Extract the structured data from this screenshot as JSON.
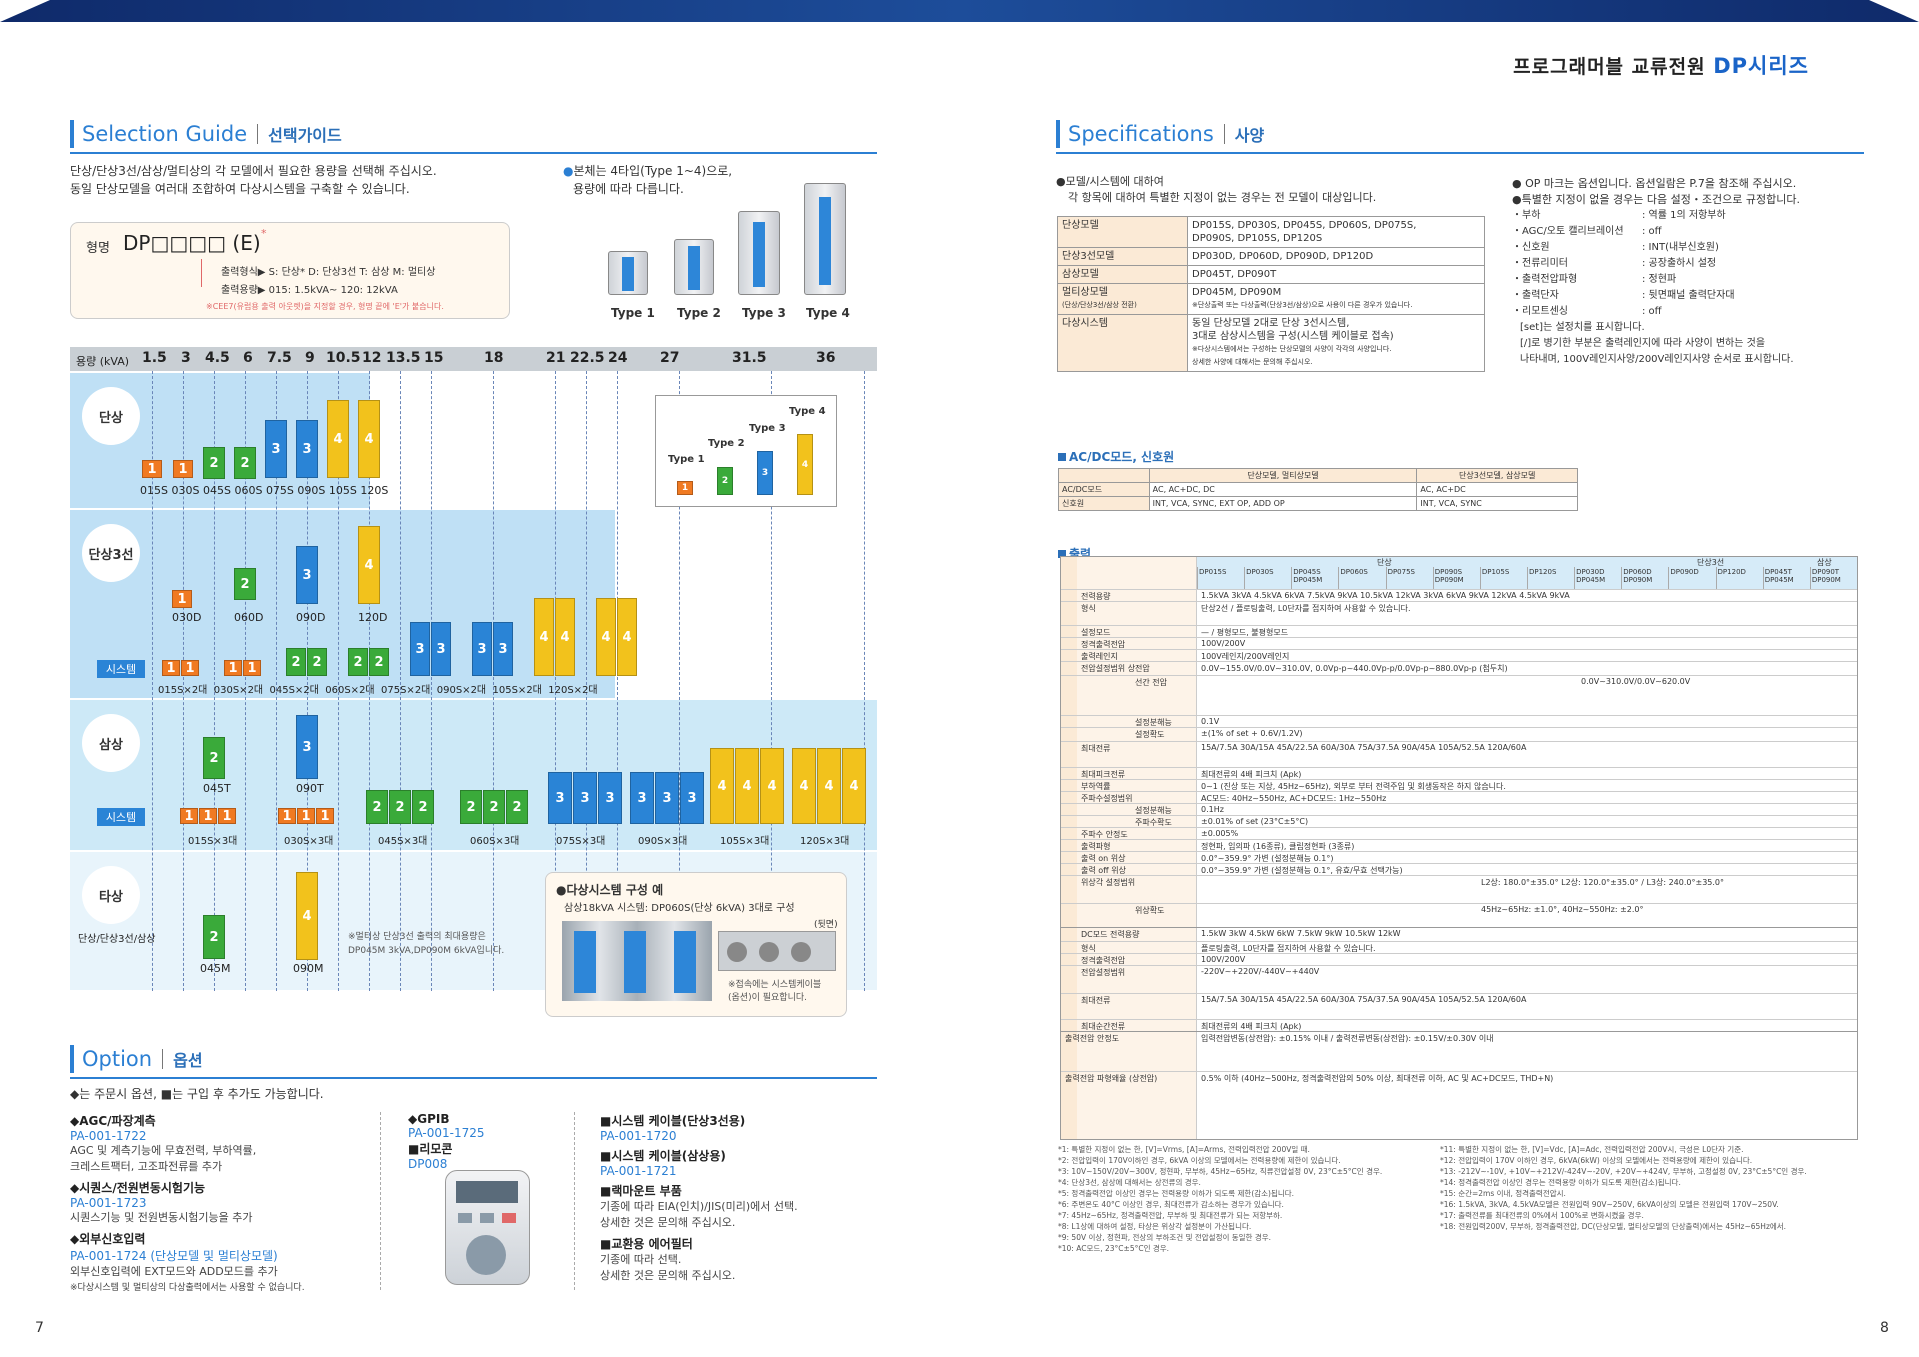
{
  "brand": {
    "title": "프로그래머블 교류전원",
    "series": "DP시리즈"
  },
  "page_numbers": {
    "left": "7",
    "right": "8"
  },
  "guide": {
    "title_en": "Selection Guide",
    "title_ko": "선택가이드",
    "intro1": "단상/단상3선/삼상/멀티상의 각 모델에서 필요한 용량을 선택해 주십시오.",
    "intro2": "동일 단상모델을 여러대 조합하여 다상시스템을 구축할 수 있습니다.",
    "types_intro1": "본체는 4타입(Type 1~4)으로,",
    "types_intro2": "용량에 따라 다릅니다.",
    "model_label": "형명",
    "model_code": "DP□□□□ (E)",
    "model_sup": "*",
    "model_line1": "출력형식▶ S: 단상* D: 단상3선 T: 삼상 M: 멀티상",
    "model_line2": "출력용량▶ 015: 1.5kVA~ 120: 12kVA",
    "model_note": "※CEE7(유럽용 출력 아웃렛)을 지정할 경우, 형명 끝에 'E'가 붙습니다.",
    "types": [
      "Type 1",
      "Type 2",
      "Type 3",
      "Type 4"
    ],
    "cap_label": "용량 (kVA)",
    "caps": [
      "1.5",
      "3",
      "4.5",
      "6",
      "7.5",
      "9",
      "10.5",
      "12",
      "13.5",
      "15",
      "18",
      "21",
      "22.5",
      "24",
      "27",
      "31.5",
      "36"
    ],
    "rows": {
      "single": "단상",
      "threewire": "단상3선",
      "three": "삼상",
      "multi": "타상",
      "multi_sub": "단상/단상3선/삼상"
    },
    "system_tag": "시스템",
    "single_models": [
      "015S",
      "030S",
      "045S",
      "060S",
      "075S",
      "090S",
      "105S",
      "120S"
    ],
    "tw_models": [
      "030D",
      "060D",
      "090D",
      "120D"
    ],
    "tw_sys": [
      "015S×2대",
      "030S×2대",
      "045S×2대",
      "060S×2대",
      "075S×2대",
      "090S×2대",
      "105S×2대",
      "120S×2대"
    ],
    "three_models": [
      "045T",
      "090T"
    ],
    "three_sys": [
      "015S×3대",
      "030S×3대",
      "045S×3대",
      "060S×3대",
      "075S×3대",
      "090S×3대",
      "105S×3대",
      "120S×3대"
    ],
    "multi_models": [
      "045M",
      "090M"
    ],
    "multi_note1": "※멀티상 단상3선 출력의 최대용량은",
    "multi_note2": "DP045M 3kVA,DP090M 6kVA입니다.",
    "example_title": "●다상시스템 구성 예",
    "example_sub": "삼상18kVA 시스템: DP060S(단상 6kVA) 3대로 구성",
    "example_back": "(뒷면)",
    "example_note1": "※접속에는 시스템케이블",
    "example_note2": "(옵션)이 필요합니다.",
    "legend_types": [
      "Type 4",
      "Type 3",
      "Type 2",
      "Type 1"
    ]
  },
  "option": {
    "title_en": "Option",
    "title_ko": "옵션",
    "intro": "◆는 주문시 옵션, ■는 구입 후 추가도 가능합니다.",
    "items": [
      {
        "h": "◆AGC/파장계측",
        "c": "PA-001-1722",
        "d": [
          "AGC 및 계측기능에 무효전력, 부하역률,",
          "크레스트팩터, 고조파전류를 추가"
        ]
      },
      {
        "h": "◆시퀀스/전원변동시험기능",
        "c": "PA-001-1723",
        "d": [
          "시퀀스기능 및 전원변동시험기능을 추가"
        ]
      },
      {
        "h": "◆외부신호입력",
        "c": "PA-001-1724 (단상모델 및 멀티상모델)",
        "d": [
          "외부신호입력에 EXT모드와 ADD모드를 추가",
          "※다상시스템 및 멀티상의 다상출력에서는 사용할 수 없습니다."
        ]
      },
      {
        "h": "◆GPIB",
        "c": "PA-001-1725",
        "d": []
      },
      {
        "h": "■리모콘",
        "c": "DP008",
        "d": []
      },
      {
        "h": "■시스템 케이블(단상3선용)",
        "c": "PA-001-1720",
        "d": []
      },
      {
        "h": "■시스템 케이블(삼상용)",
        "c": "PA-001-1721",
        "d": []
      },
      {
        "h": "■랙마운트 부품",
        "c": "",
        "d": [
          "기종에 따라 EIA(인치)/JIS(미리)에서 선택.",
          "상세한 것은 문의해 주십시오."
        ]
      },
      {
        "h": "■교환용 에어필터",
        "c": "",
        "d": [
          "기종에 따라 선택.",
          "상세한 것은 문의해 주십시오."
        ]
      }
    ]
  },
  "spec": {
    "title_en": "Specifications",
    "title_ko": "사양",
    "note1": "●모델/시스템에 대하여",
    "note2": "각 항목에 대하여 특별한 지정이 없는 경우는 전 모델이 대상입니다.",
    "right1": "● OP 마크는 옵션입니다. 옵션일람은 P.7을 참조해 주십시오.",
    "right2": "●특별한 지정이 없을 경우는 다음 설정・조건으로 규정합니다.",
    "conds": [
      [
        "・부하",
        ": 역률 1의 저항부하"
      ],
      [
        "・AGC/오토 캘리브레이션",
        ": off"
      ],
      [
        "・신호원",
        ": INT(내부신호원)"
      ],
      [
        "・전류리미터",
        ": 공장출하시 설정"
      ],
      [
        "・출력전압파형",
        ": 정현파"
      ],
      [
        "・출력단자",
        ": 뒷면패널 출력단자대"
      ],
      [
        "・리모트센싱",
        ": off"
      ]
    ],
    "right3": "[set]는 설정치를 표시합니다.",
    "right4": "[/]로 병기한 부분은 출력레인지에 따라 사양이 변하는 것을",
    "right5": "나타내며, 100V레인지사양/200V레인지사양 순서로 표시합니다.",
    "models": [
      {
        "k": "단상모델",
        "v": [
          "DP015S, DP030S, DP045S, DP060S, DP075S,",
          "DP090S, DP105S, DP120S"
        ]
      },
      {
        "k": "단상3선모델",
        "v": [
          "DP030D, DP060D, DP090D, DP120D"
        ]
      },
      {
        "k": "삼상모델",
        "v": [
          "DP045T, DP090T"
        ]
      },
      {
        "k": "멀티상모델",
        "k2": "(단상/단상3선/삼상 전환)",
        "v": [
          "DP045M, DP090M",
          "※단상출력 또는 다상출력(단상3선/삼상)으로 사용이 다른 경우가 있습니다."
        ]
      },
      {
        "k": "다상시스템",
        "v": [
          "동일 단상모델 2대로 단상 3선시스템,",
          "3대로 삼상시스템을 구성(시스템 케이블로 접속)",
          "※다상시스템에서는 구성하는 단상모델의 사양이 각각의 사양입니다.",
          "상세한 사양에 대해서는 문의해 주십시오."
        ]
      }
    ],
    "acdc_title": "AC/DC모드, 신호원",
    "acdc_head": [
      "",
      "단상모델, 멀티상모델",
      "단상3선모델, 삼상모델"
    ],
    "acdc_rows": [
      [
        "AC/DC모드",
        "AC, AC+DC, DC",
        "AC, AC+DC"
      ],
      [
        "신호원",
        "INT, VCA, SYNC, EXT OP, ADD OP",
        "INT, VCA, SYNC"
      ]
    ],
    "out_title": "출력",
    "out_groups": [
      "단상",
      "단상3선",
      "삼상"
    ],
    "out_models": [
      "DP015S",
      "DP030S",
      "DP045S DP045M",
      "DP060S",
      "DP075S",
      "DP090S DP090M",
      "DP105S",
      "DP120S",
      "DP030D DP045M",
      "DP060D DP090M",
      "DP090D",
      "DP120D",
      "DP045T DP045M",
      "DP090T DP090M"
    ],
    "out_rows": [
      [
        "형명",
        ""
      ],
      [
        "전력용량",
        "1.5kVA 3kVA 4.5kVA 6kVA 7.5kVA 9kVA 10.5kVA 12kVA 3kVA 6kVA 9kVA 12kVA 4.5kVA 9kVA"
      ],
      [
        "형식",
        "단상2선 / 플로팅출력, L0단자를 접지하여 사용할 수 있습니다."
      ],
      [
        "설정모드",
        "— / 평형모드, 불평형모드"
      ],
      [
        "정격출력전압",
        "100V/200V"
      ],
      [
        "출력레인지",
        "100V레인지/200V레인지"
      ],
      [
        "전압설정범위 상전압",
        "0.0V~155.0V/0.0V~310.0V, 0.0Vp-p~440.0Vp-p/0.0Vp-p~880.0Vp-p (첨두치)"
      ],
      [
        "선간 전압",
        "0.0V~310.0V/0.0V~620.0V"
      ],
      [
        "설정분해능",
        "0.1V"
      ],
      [
        "설정확도",
        "±(1% of set + 0.6V/1.2V)"
      ],
      [
        "최대전류",
        "15A/7.5A 30A/15A 45A/22.5A 60A/30A 75A/37.5A 90A/45A 105A/52.5A 120A/60A"
      ],
      [
        "최대피크전류",
        "최대전류의 4배 피크치 (Apk)"
      ],
      [
        "부하역률",
        "0~1 (진상 또는 지상, 45Hz~65Hz), 외부로 부터 전력주입 및 회생동작은 하지 않습니다."
      ],
      [
        "주파수설정범위",
        "AC모드: 40Hz~550Hz, AC+DC모드: 1Hz~550Hz"
      ],
      [
        "설정분해능",
        "0.1Hz"
      ],
      [
        "주파수확도",
        "±0.01% of set (23°C±5°C)"
      ],
      [
        "주파수 안정도",
        "±0.005%"
      ],
      [
        "출력파형",
        "정현파, 임의파 (16종류), 클립정현파 (3종류)"
      ],
      [
        "출력 on 위상",
        "0.0°~359.9° 가변 (설정분해능 0.1°)"
      ],
      [
        "출력 off 위상",
        "0.0°~359.9° 가변 (설정분해능 0.1°, 유효/무효 선택가능)"
      ],
      [
        "위상각 설정범위",
        "L2상: 180.0°±35.0°  L2상: 120.0°±35.0° / L3상: 240.0°±35.0°"
      ],
      [
        "위상확도",
        "45Hz~65Hz: ±1.0°, 40Hz~550Hz: ±2.0°"
      ],
      [
        "DC모드 전력용량",
        "1.5kW 3kW 4.5kW 6kW 7.5kW 9kW 10.5kW 12kW"
      ],
      [
        "형식",
        "플로팅출력, L0단자를 접지하여 사용할 수 있습니다."
      ],
      [
        "정격출력전압",
        "100V/200V"
      ],
      [
        "전압설정범위",
        "-220V~+220V/-440V~+440V"
      ],
      [
        "최대전류",
        "15A/7.5A 30A/15A 45A/22.5A 60A/30A 75A/37.5A 90A/45A 105A/52.5A 120A/60A"
      ],
      [
        "최대순간전류",
        "최대전류의 4배 피크치 (Apk)"
      ],
      [
        "출력전압 안정도",
        "입력전압변동(상전압): ±0.15% 이내 / 출력전류변동(상전압): ±0.15V/±0.30V 이내"
      ],
      [
        "출력전압 파형왜율 (상전압)",
        "0.5% 이하 (40Hz~500Hz, 정격출력전압의 50% 이상, 최대전류 이하, AC 및 AC+DC모드, THD+N)"
      ]
    ],
    "footnotes_l": [
      "*1: 특별한 지정이 없는 한, [V]=Vrms, [A]=Arms, 전력입력전압 200V일 때.",
      "*2: 전압입력이 170V이하인 경우, 6kVA 이상의 모델에서는 전력용량에 제한이 있습니다.",
      "*3: 10V~150V/20V~300V, 정현파, 무부하, 45Hz~65Hz, 직류전압설정 0V, 23°C±5°C인 경우.",
      "*4: 단상3선, 삼상에 대해서는 상전류의 경우.",
      "*5: 정격출력전압 이상인 경우는 전력용량 이하가 되도록 제한(감소)됩니다.",
      "*6: 주변온도 40°C 이상인 경우, 최대전류가 감소하는 경우가 있습니다.",
      "*7: 45Hz~65Hz, 정격출력전압, 무부하 및 최대전류가 되는 저항부하.",
      "*8: L1상에 대하여 설정, 타상은 위상각 설정분이 가산됩니다.",
      "*9: 50V 이상, 정현파, 전상의 부하조건 및 전압설정이 동일한 경우.",
      "*10: AC모드, 23°C±5°C인 경우."
    ],
    "footnotes_r": [
      "*11: 특별한 지정이 없는 한, [V]=Vdc, [A]=Adc, 전력입력전압 200V시, 극성은 L0단자 기준.",
      "*12: 전압입력이 170V 이하인 경우, 6kVA(6kW) 이상의 모델에서는 전력용량에 제한이 있습니다.",
      "*13: -212V~-10V, +10V~+212V/-424V~-20V, +20V~+424V, 무부하, 고정설정 0V, 23°C±5°C인 경우.",
      "*14: 정격출력전압 이상인 경우는 전력용량 이하가 되도록 제한(감소)됩니다.",
      "*15: 순간=2ms 이내, 정격출력전압시.",
      "*16: 1.5kVA, 3kVA, 4.5kVA모델은 전원입력 90V~250V, 6kVA이상의 모델은 전원입력 170V~250V.",
      "*17: 출력전류를 최대전류의 0%에서 100%로 변화시켰을 경우.",
      "*18: 전원입력200V, 무부하, 정격출력전압, DC(단상모델, 멀티상모델의 단상출력)에서는 45Hz~65Hz에서."
    ]
  }
}
